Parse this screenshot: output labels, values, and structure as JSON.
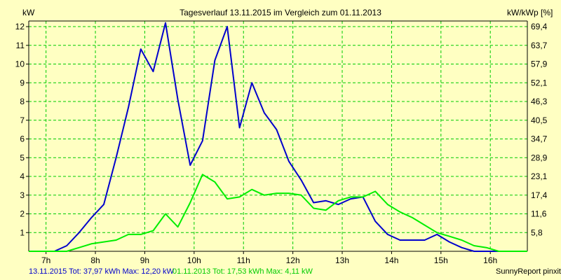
{
  "chart_data": {
    "type": "line",
    "title": "Tagesverlauf 13.11.2015 im Vergleich zum 01.11.2013",
    "ylabel_left": "kW",
    "ylabel_right": "kW/kWp [%]",
    "x_ticks": [
      "7h",
      "8h",
      "9h",
      "10h",
      "11h",
      "12h",
      "13h",
      "14h",
      "15h",
      "16h"
    ],
    "x_tick_values": [
      7,
      8,
      9,
      10,
      11,
      12,
      13,
      14,
      15,
      16
    ],
    "xlim": [
      6.65,
      16.75
    ],
    "ylim": [
      0,
      12.3
    ],
    "y_ticks": [
      1,
      2,
      3,
      4,
      5,
      6,
      7,
      8,
      9,
      10,
      11,
      12
    ],
    "y_ticks_right": [
      "5,8",
      "11,6",
      "17,4",
      "23,1",
      "28,9",
      "34,7",
      "40,5",
      "46,3",
      "52,1",
      "57,9",
      "63,7",
      "69,4"
    ],
    "grid": true,
    "series": [
      {
        "name": "13.11.2015",
        "color": "#0000cc",
        "x": [
          6.65,
          7.17,
          7.42,
          7.67,
          7.92,
          8.17,
          8.42,
          8.67,
          8.92,
          9.17,
          9.42,
          9.67,
          9.92,
          10.17,
          10.42,
          10.67,
          10.92,
          11.17,
          11.42,
          11.67,
          11.92,
          12.17,
          12.42,
          12.67,
          12.92,
          13.17,
          13.42,
          13.67,
          13.92,
          14.17,
          14.42,
          14.67,
          14.92,
          15.17,
          15.42,
          15.67,
          15.92,
          16.17,
          16.42,
          16.75
        ],
        "y": [
          0,
          0,
          0.3,
          1.0,
          1.8,
          2.5,
          5.0,
          7.7,
          10.8,
          9.6,
          12.2,
          8.1,
          4.6,
          5.9,
          10.2,
          12.0,
          6.6,
          9.0,
          7.4,
          6.5,
          4.8,
          3.8,
          2.6,
          2.7,
          2.5,
          2.8,
          2.9,
          1.6,
          0.9,
          0.6,
          0.6,
          0.6,
          0.9,
          0.5,
          0.2,
          0,
          0,
          0,
          0,
          0
        ]
      },
      {
        "name": "01.11.2013",
        "color": "#00ee00",
        "x": [
          6.65,
          7.17,
          7.42,
          7.67,
          7.92,
          8.17,
          8.42,
          8.67,
          8.92,
          9.17,
          9.42,
          9.67,
          9.92,
          10.17,
          10.42,
          10.67,
          10.92,
          11.17,
          11.42,
          11.67,
          11.92,
          12.17,
          12.42,
          12.67,
          12.92,
          13.17,
          13.42,
          13.67,
          13.92,
          14.17,
          14.42,
          14.67,
          14.92,
          15.17,
          15.42,
          15.67,
          15.92,
          16.17,
          16.42,
          16.75
        ],
        "y": [
          0,
          0,
          0,
          0.2,
          0.4,
          0.5,
          0.6,
          0.9,
          0.9,
          1.1,
          2.0,
          1.3,
          2.6,
          4.1,
          3.7,
          2.8,
          2.9,
          3.3,
          3.0,
          3.1,
          3.1,
          3.0,
          2.3,
          2.2,
          2.7,
          2.9,
          2.9,
          3.2,
          2.5,
          2.1,
          1.8,
          1.4,
          1.0,
          0.8,
          0.6,
          0.3,
          0.2,
          0,
          0,
          0
        ]
      }
    ]
  },
  "legend": {
    "line1": "13.11.2015 Tot: 37,97 kWh Max: 12,20 kW",
    "line2": "01.11.2013 Tot: 17,53 kWh Max: 4,11 kW",
    "color1": "#0000cc",
    "color2": "#00ee00"
  },
  "footer": {
    "credit": "SunnyReport pinxit"
  },
  "colors": {
    "background": "#ffffc2",
    "grid": "#00cc00",
    "axis": "#000000"
  }
}
